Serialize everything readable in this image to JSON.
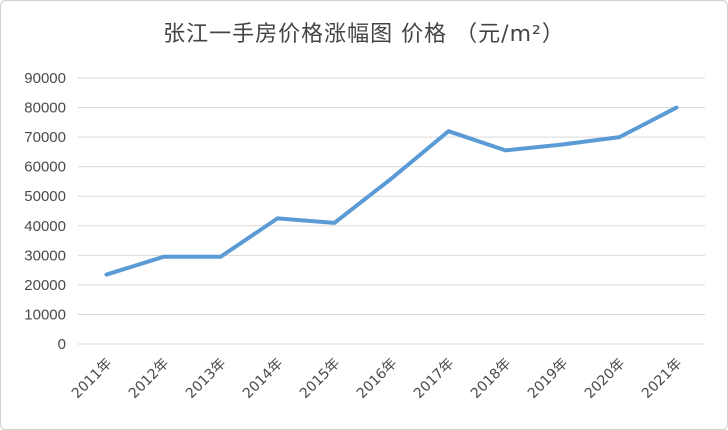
{
  "chart_data": {
    "type": "line",
    "title": "张江一手房价格涨幅图 价格 （元/m²）",
    "categories": [
      "2011年",
      "2012年",
      "2013年",
      "2014年",
      "2015年",
      "2016年",
      "2017年",
      "2018年",
      "2019年",
      "2020年",
      "2021年"
    ],
    "series": [
      {
        "values": [
          23500,
          29500,
          29500,
          42500,
          41000,
          56000,
          72000,
          65500,
          67500,
          70000,
          80000
        ]
      }
    ],
    "yticks": [
      "0",
      "10000",
      "20000",
      "30000",
      "40000",
      "50000",
      "60000",
      "70000",
      "80000",
      "90000"
    ],
    "ylim": [
      0,
      90000
    ],
    "grid": true,
    "line_color": "#5b9bd5",
    "grid_color": "#d9d9d9"
  }
}
